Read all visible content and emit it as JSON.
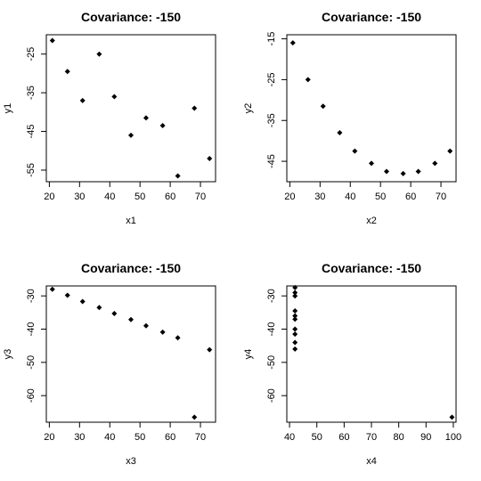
{
  "chart_data": [
    {
      "type": "scatter",
      "title": "Covariance: -150",
      "xlabel": "x1",
      "ylabel": "y1",
      "xlim": [
        19,
        75
      ],
      "ylim": [
        -58,
        -20
      ],
      "xticks": [
        20,
        30,
        40,
        50,
        60,
        70
      ],
      "yticks": [
        -25,
        -35,
        -45,
        -55
      ],
      "grid": false,
      "x": [
        21,
        26,
        31,
        36.5,
        41.5,
        47,
        52,
        57.5,
        62.5,
        68,
        73
      ],
      "y": [
        -21.5,
        -29.5,
        -37,
        -25,
        -36,
        -46,
        -41.5,
        -43.5,
        -56.5,
        -39,
        -52
      ]
    },
    {
      "type": "scatter",
      "title": "Covariance: -150",
      "xlabel": "x2",
      "ylabel": "y2",
      "xlim": [
        19,
        75
      ],
      "ylim": [
        -50,
        -14
      ],
      "xticks": [
        20,
        30,
        40,
        50,
        60,
        70
      ],
      "yticks": [
        -15,
        -25,
        -35,
        -45
      ],
      "grid": false,
      "x": [
        21,
        26,
        31,
        36.5,
        41.5,
        47,
        52,
        57.5,
        62.5,
        68,
        73
      ],
      "y": [
        -16,
        -25,
        -31.5,
        -38,
        -42.5,
        -45.5,
        -47.5,
        -48,
        -47.5,
        -45.5,
        -42.5
      ]
    },
    {
      "type": "scatter",
      "title": "Covariance: -150",
      "xlabel": "x3",
      "ylabel": "y3",
      "xlim": [
        19,
        75
      ],
      "ylim": [
        -68,
        -27
      ],
      "xticks": [
        20,
        30,
        40,
        50,
        60,
        70
      ],
      "yticks": [
        -30,
        -40,
        -50,
        -60
      ],
      "grid": false,
      "x": [
        21,
        26,
        31,
        36.5,
        41.5,
        47,
        52,
        57.5,
        62.5,
        68,
        73
      ],
      "y": [
        -28,
        -29.8,
        -31.7,
        -33.5,
        -35.3,
        -37.1,
        -39,
        -40.9,
        -42.6,
        -66.5,
        -46.2
      ]
    },
    {
      "type": "scatter",
      "title": "Covariance: -150",
      "xlabel": "x4",
      "ylabel": "y4",
      "xlim": [
        39,
        101
      ],
      "ylim": [
        -68,
        -27
      ],
      "xticks": [
        40,
        50,
        60,
        70,
        80,
        90,
        100
      ],
      "yticks": [
        -30,
        -40,
        -50,
        -60
      ],
      "grid": false,
      "x": [
        42,
        42,
        42,
        42,
        42,
        42,
        42,
        42,
        42,
        42,
        99.5
      ],
      "y": [
        -27.5,
        -29,
        -30,
        -34.5,
        -36,
        -37,
        -40,
        -41.5,
        -44,
        -46,
        -66.5
      ]
    }
  ]
}
